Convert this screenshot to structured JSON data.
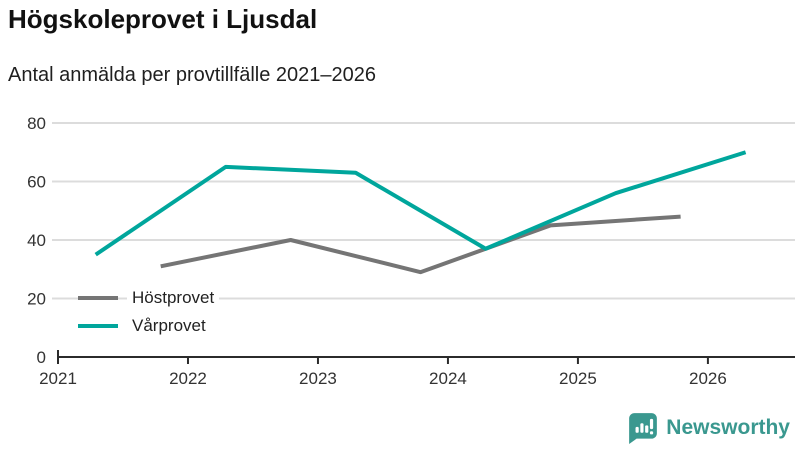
{
  "header": {
    "title": "Högskoleprovet i Ljusdal",
    "subtitle": "Antal anmälda per provtillfälle 2021–2026"
  },
  "chart_data": {
    "type": "line",
    "title": "Högskoleprovet i Ljusdal",
    "subtitle": "Antal anmälda per provtillfälle 2021–2026",
    "xlabel": "",
    "ylabel": "",
    "xlim": [
      2021,
      2026.67
    ],
    "ylim": [
      0,
      80
    ],
    "x_ticks": [
      2021,
      2022,
      2023,
      2024,
      2025,
      2026
    ],
    "y_ticks": [
      0,
      20,
      40,
      60,
      80
    ],
    "grid": "horizontal",
    "legend_position": "inside-bottom-left",
    "axis_color": "#2b2b2b",
    "axis_text_color": "#333333",
    "grid_color": "#dcdcdc",
    "series": [
      {
        "name": "Höstprovet",
        "color": "#757575",
        "x": [
          2021.79,
          2022.79,
          2023.79,
          2024.79,
          2025.79
        ],
        "values": [
          31,
          40,
          29,
          45,
          48
        ]
      },
      {
        "name": "Vårprovet",
        "color": "#00a69c",
        "x": [
          2021.29,
          2022.29,
          2023.29,
          2024.29,
          2025.29,
          2026.29
        ],
        "values": [
          35,
          65,
          63,
          37,
          56,
          70
        ]
      }
    ]
  },
  "branding": {
    "logo_text": "Newsworthy",
    "logo_color": "#3a988f",
    "logo_icon": "bar-chart-speech-bubble"
  }
}
